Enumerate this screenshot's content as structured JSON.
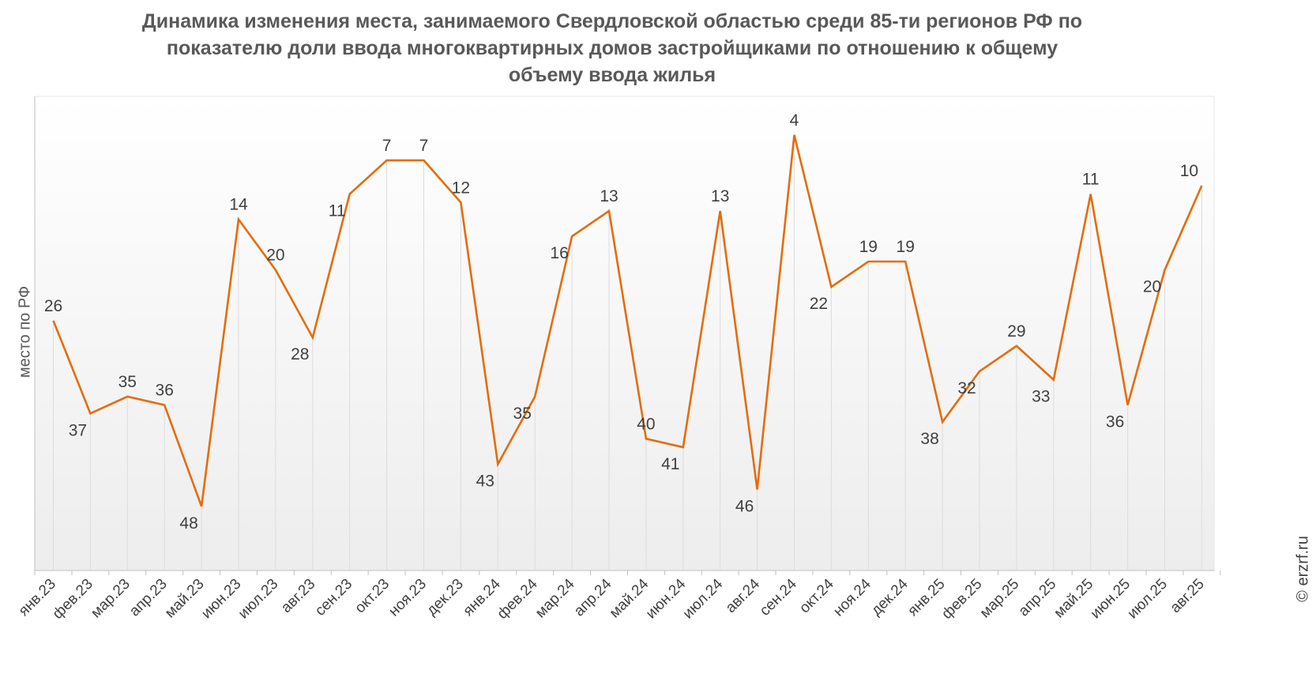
{
  "header": {
    "title_lines": [
      "Динамика изменения места, занимаемого Свердловской областью среди 85-ти регионов РФ по",
      "показателю доли ввода многоквартирных домов застройщиками по отношению к общему",
      "объему ввода жилья"
    ]
  },
  "watermark": "© erzrf.ru",
  "chart_data": {
    "type": "line",
    "title": "Динамика изменения места, занимаемого Свердловской областью среди 85-ти регионов РФ по показателю доли ввода многоквартирных домов застройщиками по отношению к общему объему ввода жилья",
    "xlabel": "",
    "ylabel": "место по РФ",
    "y_reversed": true,
    "ylim": [
      1,
      56
    ],
    "grid": "vertical",
    "legend": "none",
    "line_color": "#e46c0a",
    "categories": [
      "янв.23",
      "фев.23",
      "мар.23",
      "апр.23",
      "май.23",
      "июн.23",
      "июл.23",
      "авг.23",
      "сен.23",
      "окт.23",
      "ноя.23",
      "дек.23",
      "янв.24",
      "фев.24",
      "мар.24",
      "апр.24",
      "май.24",
      "июн.24",
      "июл.24",
      "авг.24",
      "сен.24",
      "окт.24",
      "ноя.24",
      "дек.24",
      "янв.25",
      "фев.25",
      "мар.25",
      "апр.25",
      "май.25",
      "июн.25",
      "июл.25",
      "авг.25"
    ],
    "series": [
      {
        "values": [
          26,
          37,
          35,
          36,
          48,
          14,
          20,
          28,
          11,
          7,
          7,
          12,
          43,
          35,
          16,
          13,
          40,
          41,
          13,
          46,
          4,
          22,
          19,
          19,
          38,
          32,
          29,
          33,
          11,
          36,
          20,
          10
        ]
      }
    ]
  }
}
